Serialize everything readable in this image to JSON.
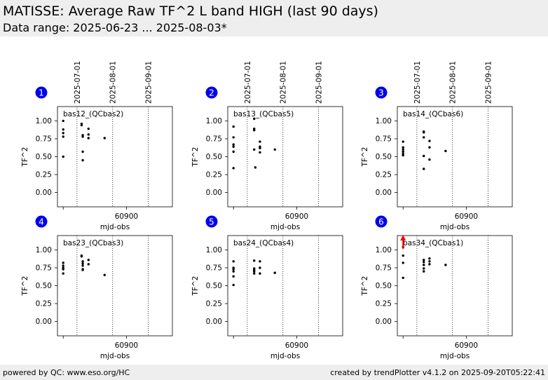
{
  "header": {
    "title": "MATISSE: Average Raw TF^2 L band HIGH (last 90 days)",
    "subtitle": "Data range: 2025-06-23 ... 2025-08-03*"
  },
  "footer": {
    "left": "powered by QC: www.eso.org/HC",
    "right": "created by trendPlotter v4.1.2 on 2025-09-20T05:22:41"
  },
  "chart_data": {
    "type": "scatter",
    "xlabel": "mjd-obs",
    "ylabel": "TF^2",
    "xlim": [
      60840,
      60940
    ],
    "ylim": [
      -0.2,
      1.2
    ],
    "yticks": [
      0.0,
      0.25,
      0.5,
      0.75,
      1.0
    ],
    "ytick_labels": [
      "0.00",
      "0.25",
      "0.50",
      "0.75",
      "1.00"
    ],
    "xticks": [
      60900
    ],
    "xtick_labels": [
      "60900"
    ],
    "date_markers": [
      {
        "label": "2025-07-01",
        "mjd": 60857
      },
      {
        "label": "2025-08-01",
        "mjd": 60888
      },
      {
        "label": "2025-09-01",
        "mjd": 60919
      }
    ],
    "panels": [
      {
        "number": "1",
        "label": "bas12_(QCbas2)",
        "x": [
          60845,
          60845,
          60845,
          60845,
          60845,
          60861,
          60861,
          60862,
          60862,
          60862,
          60862,
          60867,
          60867,
          60867,
          60881
        ],
        "y": [
          1.0,
          0.88,
          0.83,
          0.78,
          0.5,
          0.96,
          0.94,
          0.8,
          0.78,
          0.57,
          0.45,
          0.89,
          0.81,
          0.76,
          0.76
        ]
      },
      {
        "number": "2",
        "label": "bas13_(QCbas5)",
        "x": [
          60845,
          60845,
          60845,
          60845,
          60845,
          60845,
          60863,
          60863,
          60863,
          60863,
          60864,
          60868,
          60868,
          60868,
          60868,
          60881
        ],
        "y": [
          0.92,
          0.77,
          0.67,
          0.64,
          0.57,
          0.34,
          1.03,
          0.89,
          0.87,
          0.6,
          0.35,
          0.71,
          0.64,
          0.62,
          0.56,
          0.6
        ]
      },
      {
        "number": "3",
        "label": "bas14_(QCbas6)",
        "x": [
          60845,
          60845,
          60845,
          60845,
          60845,
          60845,
          60863,
          60863,
          60863,
          60863,
          60863,
          60868,
          60868,
          60868,
          60882
        ],
        "y": [
          0.71,
          0.63,
          0.6,
          0.57,
          0.54,
          0.52,
          0.85,
          0.84,
          0.77,
          0.51,
          0.33,
          0.72,
          0.63,
          0.46,
          0.58
        ]
      },
      {
        "number": "4",
        "label": "bas23_(QCbas3)",
        "x": [
          60845,
          60845,
          60845,
          60845,
          60845,
          60861,
          60861,
          60862,
          60862,
          60862,
          60862,
          60862,
          60867,
          60867,
          60881
        ],
        "y": [
          0.82,
          0.78,
          0.75,
          0.73,
          0.67,
          0.92,
          0.91,
          0.84,
          0.81,
          0.78,
          0.73,
          0.72,
          0.86,
          0.8,
          0.65
        ]
      },
      {
        "number": "5",
        "label": "bas24_(QCbas4)",
        "x": [
          60845,
          60845,
          60845,
          60845,
          60845,
          60845,
          60863,
          60863,
          60863,
          60863,
          60863,
          60868,
          60868,
          60868,
          60881
        ],
        "y": [
          0.84,
          0.75,
          0.73,
          0.7,
          0.63,
          0.51,
          0.85,
          0.74,
          0.72,
          0.7,
          0.67,
          0.84,
          0.75,
          0.67,
          0.68
        ]
      },
      {
        "number": "6",
        "label": "bas34_(QCbas1)",
        "x": [
          60845,
          60845,
          60845,
          60845,
          60863,
          60863,
          60863,
          60863,
          60863,
          60868,
          60868,
          60868,
          60882
        ],
        "y": [
          1.04,
          0.92,
          0.82,
          0.61,
          0.86,
          0.83,
          0.79,
          0.74,
          0.7,
          0.88,
          0.84,
          0.8,
          0.79
        ],
        "outlier_arrow_x": 60845
      }
    ],
    "grid": false,
    "point_color": "#000000",
    "number_badge_color": "#0000ee",
    "outlier_color": "#ff0000"
  }
}
